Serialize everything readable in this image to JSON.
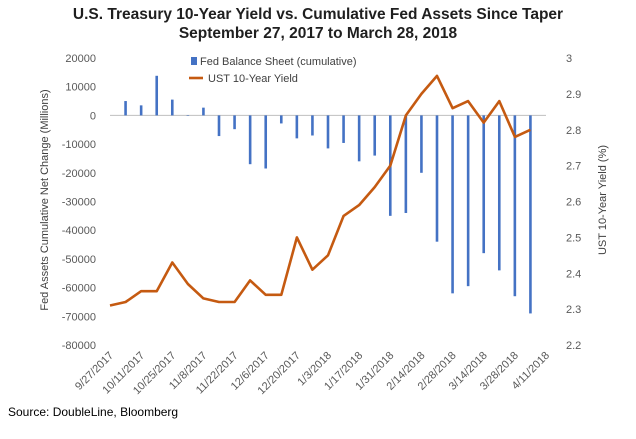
{
  "chart_data": {
    "type": "bar+line",
    "title": "U.S. Treasury 10-Year Yield vs. Cumulative Fed Assets Since Taper",
    "subtitle": "September 27, 2017 to March 28, 2018",
    "source": "Source: DoubleLine, Bloomberg",
    "y_left_label": "Fed Assets Cumulative Net Change (Millions)",
    "y_right_label": "UST 10-Year Yield (%)",
    "y_left_range": [
      -80000,
      20000
    ],
    "y_left_ticks": [
      "20000",
      "10000",
      "0",
      "-10000",
      "-20000",
      "-30000",
      "-40000",
      "-50000",
      "-60000",
      "-70000",
      "-80000"
    ],
    "y_right_range": [
      2.2,
      3.0
    ],
    "y_right_ticks": [
      "3",
      "2.9",
      "2.8",
      "2.7",
      "2.6",
      "2.5",
      "2.4",
      "2.3",
      "2.2"
    ],
    "x_ticks": [
      "9/27/2017",
      "10/11/2017",
      "10/25/2017",
      "11/8/2017",
      "11/22/2017",
      "12/6/2017",
      "12/20/2017",
      "1/3/2018",
      "1/17/2018",
      "1/31/2018",
      "2/14/2018",
      "2/28/2018",
      "3/14/2018",
      "3/28/2018",
      "4/11/2018"
    ],
    "x_start": "2017-09-27",
    "x_end": "2018-04-11",
    "legend": [
      "Fed Balance Sheet (cumulative)",
      "UST 10-Year Yield"
    ],
    "colors": {
      "bars": "#4472c4",
      "line": "#c55a11",
      "grid": "#d9d9d9",
      "axis_text": "#595959"
    },
    "bars": [
      {
        "date": "2017-10-04",
        "value": 5000
      },
      {
        "date": "2017-10-11",
        "value": 3500
      },
      {
        "date": "2017-10-18",
        "value": 13800
      },
      {
        "date": "2017-10-25",
        "value": 5500
      },
      {
        "date": "2017-11-01",
        "value": 0
      },
      {
        "date": "2017-11-08",
        "value": 2700
      },
      {
        "date": "2017-11-15",
        "value": -7200
      },
      {
        "date": "2017-11-22",
        "value": -4800
      },
      {
        "date": "2017-11-29",
        "value": -17000
      },
      {
        "date": "2017-12-06",
        "value": -18500
      },
      {
        "date": "2017-12-13",
        "value": -2800
      },
      {
        "date": "2017-12-20",
        "value": -8000
      },
      {
        "date": "2017-12-27",
        "value": -7000
      },
      {
        "date": "2018-01-03",
        "value": -11500
      },
      {
        "date": "2018-01-10",
        "value": -9600
      },
      {
        "date": "2018-01-17",
        "value": -16000
      },
      {
        "date": "2018-01-24",
        "value": -14000
      },
      {
        "date": "2018-01-31",
        "value": -35000
      },
      {
        "date": "2018-02-07",
        "value": -34000
      },
      {
        "date": "2018-02-14",
        "value": -20000
      },
      {
        "date": "2018-02-21",
        "value": -44000
      },
      {
        "date": "2018-02-28",
        "value": -62000
      },
      {
        "date": "2018-03-07",
        "value": -59500
      },
      {
        "date": "2018-03-14",
        "value": -48000
      },
      {
        "date": "2018-03-21",
        "value": -54000
      },
      {
        "date": "2018-03-28",
        "value": -63000
      },
      {
        "date": "2018-04-04",
        "value": -69000
      }
    ],
    "line": [
      {
        "date": "2017-09-27",
        "value": 2.31
      },
      {
        "date": "2017-10-04",
        "value": 2.32
      },
      {
        "date": "2017-10-11",
        "value": 2.35
      },
      {
        "date": "2017-10-18",
        "value": 2.35
      },
      {
        "date": "2017-10-25",
        "value": 2.43
      },
      {
        "date": "2017-11-01",
        "value": 2.37
      },
      {
        "date": "2017-11-08",
        "value": 2.33
      },
      {
        "date": "2017-11-15",
        "value": 2.32
      },
      {
        "date": "2017-11-22",
        "value": 2.32
      },
      {
        "date": "2017-11-29",
        "value": 2.38
      },
      {
        "date": "2017-12-06",
        "value": 2.34
      },
      {
        "date": "2017-12-13",
        "value": 2.34
      },
      {
        "date": "2017-12-20",
        "value": 2.5
      },
      {
        "date": "2017-12-27",
        "value": 2.41
      },
      {
        "date": "2018-01-03",
        "value": 2.45
      },
      {
        "date": "2018-01-10",
        "value": 2.56
      },
      {
        "date": "2018-01-17",
        "value": 2.59
      },
      {
        "date": "2018-01-24",
        "value": 2.64
      },
      {
        "date": "2018-01-31",
        "value": 2.7
      },
      {
        "date": "2018-02-07",
        "value": 2.84
      },
      {
        "date": "2018-02-14",
        "value": 2.9
      },
      {
        "date": "2018-02-21",
        "value": 2.95
      },
      {
        "date": "2018-02-28",
        "value": 2.86
      },
      {
        "date": "2018-03-07",
        "value": 2.88
      },
      {
        "date": "2018-03-14",
        "value": 2.82
      },
      {
        "date": "2018-03-21",
        "value": 2.88
      },
      {
        "date": "2018-03-28",
        "value": 2.78
      },
      {
        "date": "2018-04-04",
        "value": 2.8
      }
    ]
  }
}
